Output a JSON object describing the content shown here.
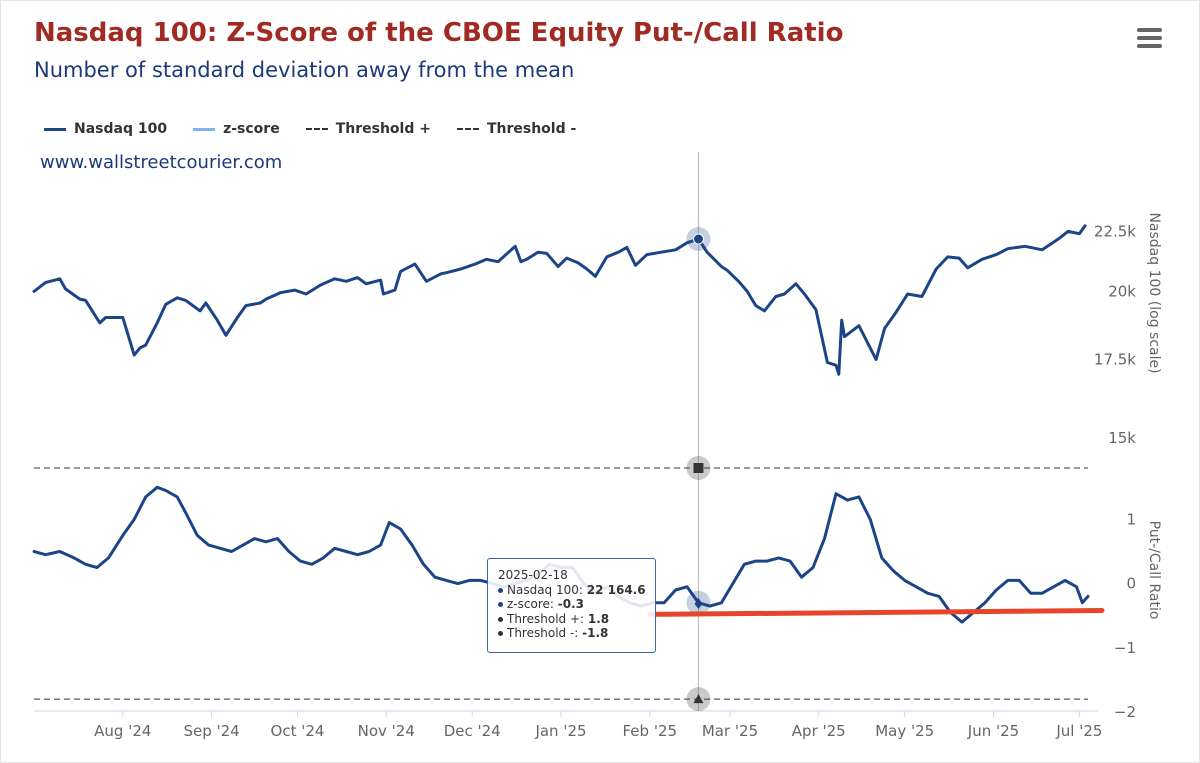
{
  "header": {
    "title": "Nasdaq 100: Z-Score of the CBOE Equity Put-/Call Ratio",
    "subtitle": "Number of standard deviation away from the mean"
  },
  "menu": {
    "icon": "hamburger-menu-icon"
  },
  "credit": "www.wallstreetcourier.com",
  "legend": [
    {
      "label": "Nasdaq 100",
      "color": "#1c4587",
      "style": "solid"
    },
    {
      "label": "z-score",
      "color": "#7cb5ec",
      "style": "solid"
    },
    {
      "label": "Threshold +",
      "color": "#333333",
      "style": "dashed"
    },
    {
      "label": "Threshold -",
      "color": "#333333",
      "style": "dashed"
    }
  ],
  "tooltip": {
    "date": "2025-02-18",
    "rows": [
      {
        "name": "Nasdaq 100: ",
        "value": "22 164.6",
        "color": "#1c4587"
      },
      {
        "name": "z-score: ",
        "value": "-0.3",
        "color": "#1c4587"
      },
      {
        "name": "Threshold +: ",
        "value": "1.8",
        "color": "#333333"
      },
      {
        "name": "Threshold -: ",
        "value": "-1.8",
        "color": "#333333"
      }
    ]
  },
  "chart_data": {
    "type": "line",
    "x_axis": {
      "range": [
        "2024-07-01",
        "2025-07-04"
      ],
      "ticks": [
        {
          "date": "2024-08-01",
          "label": "Aug '24"
        },
        {
          "date": "2024-09-01",
          "label": "Sep '24"
        },
        {
          "date": "2024-10-01",
          "label": "Oct '24"
        },
        {
          "date": "2024-11-01",
          "label": "Nov '24"
        },
        {
          "date": "2024-12-01",
          "label": "Dec '24"
        },
        {
          "date": "2025-01-01",
          "label": "Jan '25"
        },
        {
          "date": "2025-02-01",
          "label": "Feb '25"
        },
        {
          "date": "2025-03-01",
          "label": "Mar '25"
        },
        {
          "date": "2025-04-01",
          "label": "Apr '25"
        },
        {
          "date": "2025-05-01",
          "label": "May '25"
        },
        {
          "date": "2025-06-01",
          "label": "Jun '25"
        },
        {
          "date": "2025-07-01",
          "label": "Jul '25"
        }
      ]
    },
    "price_axis": {
      "title": "Nasdaq 100 (log scale)",
      "scale": "log",
      "range": [
        15000,
        24500
      ],
      "ticks": [
        15000,
        17500,
        20000,
        22500
      ],
      "tick_labels": [
        "15k",
        "17.5k",
        "20k",
        "22.5k"
      ]
    },
    "z_axis": {
      "title": "Put-/Call Ratio",
      "range": [
        -2,
        1.8
      ],
      "ticks": [
        -2,
        -1,
        0,
        1
      ],
      "tick_labels": [
        "−2",
        "−1",
        "0",
        "1"
      ]
    },
    "thresholds": {
      "upper": 1.8,
      "lower": -1.8
    },
    "highlight_date": "2025-02-18",
    "series": [
      {
        "name": "Nasdaq 100",
        "axis": "price",
        "points": [
          [
            "2024-07-01",
            20000
          ],
          [
            "2024-07-05",
            20350
          ],
          [
            "2024-07-10",
            20500
          ],
          [
            "2024-07-12",
            20100
          ],
          [
            "2024-07-17",
            19700
          ],
          [
            "2024-07-19",
            19650
          ],
          [
            "2024-07-24",
            18800
          ],
          [
            "2024-07-26",
            19000
          ],
          [
            "2024-08-01",
            19000
          ],
          [
            "2024-08-05",
            17650
          ],
          [
            "2024-08-07",
            17900
          ],
          [
            "2024-08-09",
            18000
          ],
          [
            "2024-08-13",
            18800
          ],
          [
            "2024-08-16",
            19500
          ],
          [
            "2024-08-20",
            19750
          ],
          [
            "2024-08-23",
            19650
          ],
          [
            "2024-08-28",
            19250
          ],
          [
            "2024-08-30",
            19550
          ],
          [
            "2024-09-03",
            18900
          ],
          [
            "2024-09-06",
            18350
          ],
          [
            "2024-09-10",
            19000
          ],
          [
            "2024-09-13",
            19450
          ],
          [
            "2024-09-18",
            19550
          ],
          [
            "2024-09-20",
            19700
          ],
          [
            "2024-09-25",
            19950
          ],
          [
            "2024-09-30",
            20050
          ],
          [
            "2024-10-04",
            19900
          ],
          [
            "2024-10-09",
            20250
          ],
          [
            "2024-10-14",
            20500
          ],
          [
            "2024-10-18",
            20400
          ],
          [
            "2024-10-22",
            20550
          ],
          [
            "2024-10-25",
            20300
          ],
          [
            "2024-10-30",
            20450
          ],
          [
            "2024-10-31",
            19900
          ],
          [
            "2024-11-04",
            20050
          ],
          [
            "2024-11-06",
            20800
          ],
          [
            "2024-11-11",
            21100
          ],
          [
            "2024-11-15",
            20400
          ],
          [
            "2024-11-20",
            20700
          ],
          [
            "2024-11-22",
            20750
          ],
          [
            "2024-11-27",
            20900
          ],
          [
            "2024-12-02",
            21100
          ],
          [
            "2024-12-06",
            21300
          ],
          [
            "2024-12-10",
            21200
          ],
          [
            "2024-12-16",
            21850
          ],
          [
            "2024-12-18",
            21200
          ],
          [
            "2024-12-20",
            21300
          ],
          [
            "2024-12-24",
            21600
          ],
          [
            "2024-12-27",
            21550
          ],
          [
            "2024-12-31",
            21000
          ],
          [
            "2025-01-03",
            21350
          ],
          [
            "2025-01-07",
            21150
          ],
          [
            "2025-01-10",
            20900
          ],
          [
            "2025-01-13",
            20600
          ],
          [
            "2025-01-17",
            21400
          ],
          [
            "2025-01-21",
            21600
          ],
          [
            "2025-01-24",
            21800
          ],
          [
            "2025-01-27",
            21050
          ],
          [
            "2025-01-31",
            21500
          ],
          [
            "2025-02-05",
            21600
          ],
          [
            "2025-02-10",
            21700
          ],
          [
            "2025-02-14",
            22000
          ],
          [
            "2025-02-18",
            22164.6
          ],
          [
            "2025-02-21",
            21600
          ],
          [
            "2025-02-26",
            21000
          ],
          [
            "2025-02-28",
            20850
          ],
          [
            "2025-03-04",
            20400
          ],
          [
            "2025-03-07",
            20000
          ],
          [
            "2025-03-10",
            19450
          ],
          [
            "2025-03-13",
            19250
          ],
          [
            "2025-03-17",
            19800
          ],
          [
            "2025-03-20",
            19900
          ],
          [
            "2025-03-24",
            20300
          ],
          [
            "2025-03-27",
            19900
          ],
          [
            "2025-03-31",
            19300
          ],
          [
            "2025-04-04",
            17400
          ],
          [
            "2025-04-07",
            17300
          ],
          [
            "2025-04-08",
            17000
          ],
          [
            "2025-04-09",
            18900
          ],
          [
            "2025-04-10",
            18300
          ],
          [
            "2025-04-15",
            18700
          ],
          [
            "2025-04-21",
            17500
          ],
          [
            "2025-04-24",
            18600
          ],
          [
            "2025-04-28",
            19200
          ],
          [
            "2025-05-02",
            19900
          ],
          [
            "2025-05-07",
            19800
          ],
          [
            "2025-05-12",
            20900
          ],
          [
            "2025-05-16",
            21400
          ],
          [
            "2025-05-20",
            21350
          ],
          [
            "2025-05-23",
            20950
          ],
          [
            "2025-05-28",
            21300
          ],
          [
            "2025-06-02",
            21500
          ],
          [
            "2025-06-06",
            21750
          ],
          [
            "2025-06-12",
            21850
          ],
          [
            "2025-06-18",
            21700
          ],
          [
            "2025-06-24",
            22200
          ],
          [
            "2025-06-27",
            22500
          ],
          [
            "2025-07-01",
            22400
          ],
          [
            "2025-07-03",
            22750
          ]
        ]
      },
      {
        "name": "z-score",
        "axis": "z",
        "points": [
          [
            "2024-07-01",
            0.5
          ],
          [
            "2024-07-05",
            0.45
          ],
          [
            "2024-07-10",
            0.5
          ],
          [
            "2024-07-15",
            0.4
          ],
          [
            "2024-07-19",
            0.3
          ],
          [
            "2024-07-23",
            0.25
          ],
          [
            "2024-07-27",
            0.4
          ],
          [
            "2024-08-01",
            0.75
          ],
          [
            "2024-08-05",
            1.0
          ],
          [
            "2024-08-09",
            1.35
          ],
          [
            "2024-08-13",
            1.5
          ],
          [
            "2024-08-16",
            1.45
          ],
          [
            "2024-08-20",
            1.35
          ],
          [
            "2024-08-23",
            1.1
          ],
          [
            "2024-08-27",
            0.75
          ],
          [
            "2024-08-31",
            0.6
          ],
          [
            "2024-09-04",
            0.55
          ],
          [
            "2024-09-08",
            0.5
          ],
          [
            "2024-09-12",
            0.6
          ],
          [
            "2024-09-16",
            0.7
          ],
          [
            "2024-09-20",
            0.65
          ],
          [
            "2024-09-24",
            0.7
          ],
          [
            "2024-09-28",
            0.5
          ],
          [
            "2024-10-02",
            0.35
          ],
          [
            "2024-10-06",
            0.3
          ],
          [
            "2024-10-10",
            0.4
          ],
          [
            "2024-10-14",
            0.55
          ],
          [
            "2024-10-18",
            0.5
          ],
          [
            "2024-10-22",
            0.45
          ],
          [
            "2024-10-26",
            0.5
          ],
          [
            "2024-10-30",
            0.6
          ],
          [
            "2024-11-02",
            0.95
          ],
          [
            "2024-11-06",
            0.85
          ],
          [
            "2024-11-10",
            0.6
          ],
          [
            "2024-11-14",
            0.3
          ],
          [
            "2024-11-18",
            0.1
          ],
          [
            "2024-11-22",
            0.05
          ],
          [
            "2024-11-26",
            0.0
          ],
          [
            "2024-11-30",
            0.05
          ],
          [
            "2024-12-04",
            0.05
          ],
          [
            "2024-12-08",
            0.0
          ],
          [
            "2024-12-12",
            -0.05
          ],
          [
            "2024-12-16",
            0.0
          ],
          [
            "2024-12-20",
            0.05
          ],
          [
            "2024-12-24",
            0.15
          ],
          [
            "2024-12-28",
            0.3
          ],
          [
            "2025-01-01",
            0.25
          ],
          [
            "2025-01-05",
            0.25
          ],
          [
            "2025-01-09",
            0.0
          ],
          [
            "2025-01-13",
            -0.15
          ],
          [
            "2025-01-17",
            -0.05
          ],
          [
            "2025-01-21",
            -0.2
          ],
          [
            "2025-01-25",
            -0.3
          ],
          [
            "2025-01-29",
            -0.35
          ],
          [
            "2025-02-02",
            -0.3
          ],
          [
            "2025-02-06",
            -0.3
          ],
          [
            "2025-02-10",
            -0.1
          ],
          [
            "2025-02-14",
            -0.05
          ],
          [
            "2025-02-18",
            -0.3
          ],
          [
            "2025-02-22",
            -0.35
          ],
          [
            "2025-02-26",
            -0.3
          ],
          [
            "2025-03-02",
            0.0
          ],
          [
            "2025-03-06",
            0.3
          ],
          [
            "2025-03-10",
            0.35
          ],
          [
            "2025-03-14",
            0.35
          ],
          [
            "2025-03-18",
            0.4
          ],
          [
            "2025-03-22",
            0.35
          ],
          [
            "2025-03-26",
            0.1
          ],
          [
            "2025-03-30",
            0.25
          ],
          [
            "2025-04-03",
            0.7
          ],
          [
            "2025-04-07",
            1.4
          ],
          [
            "2025-04-11",
            1.3
          ],
          [
            "2025-04-15",
            1.35
          ],
          [
            "2025-04-19",
            1.0
          ],
          [
            "2025-04-23",
            0.4
          ],
          [
            "2025-04-27",
            0.2
          ],
          [
            "2025-05-01",
            0.05
          ],
          [
            "2025-05-05",
            -0.05
          ],
          [
            "2025-05-09",
            -0.15
          ],
          [
            "2025-05-13",
            -0.2
          ],
          [
            "2025-05-17",
            -0.45
          ],
          [
            "2025-05-21",
            -0.6
          ],
          [
            "2025-05-25",
            -0.45
          ],
          [
            "2025-05-29",
            -0.3
          ],
          [
            "2025-06-02",
            -0.1
          ],
          [
            "2025-06-06",
            0.05
          ],
          [
            "2025-06-10",
            0.05
          ],
          [
            "2025-06-14",
            -0.15
          ],
          [
            "2025-06-18",
            -0.15
          ],
          [
            "2025-06-22",
            -0.05
          ],
          [
            "2025-06-26",
            0.05
          ],
          [
            "2025-06-30",
            -0.05
          ],
          [
            "2025-07-02",
            -0.3
          ],
          [
            "2025-07-04",
            -0.2
          ]
        ]
      }
    ],
    "annotation_line": {
      "color": "#e5462a",
      "from": [
        "2025-02-01",
        -0.48
      ],
      "to": [
        "2025-07-04",
        -0.42
      ]
    }
  }
}
